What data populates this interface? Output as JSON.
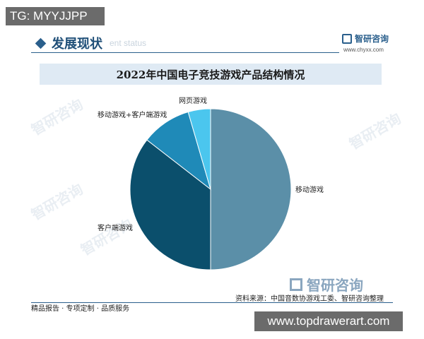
{
  "tag": "TG: MYYJJPP",
  "header": {
    "section_title": "发展现状",
    "section_subtitle": "ent status",
    "brand_name": "智研咨询",
    "brand_url": "www.chyxx.com"
  },
  "chart_data": {
    "type": "pie",
    "title": "2022年中国电子竞技游戏产品结构情况",
    "slices": [
      {
        "label": "移动游戏",
        "value": 50.0,
        "color": "#5b8fa8"
      },
      {
        "label": "客户端游戏",
        "value": 35.5,
        "color": "#0b4f6c"
      },
      {
        "label": "移动游戏+客户端游戏",
        "value": 10.0,
        "color": "#1f8ab8"
      },
      {
        "label": "网页游戏",
        "value": 4.5,
        "color": "#4bc6ee"
      }
    ],
    "legend": "none"
  },
  "watermark": "智研咨询",
  "footer": {
    "source": "资料来源：中国音数协游戏工委、智研咨询整理",
    "left_text": "精品报告 · 专项定制 · 品质服务",
    "url": "www.topdrawerart.com"
  }
}
